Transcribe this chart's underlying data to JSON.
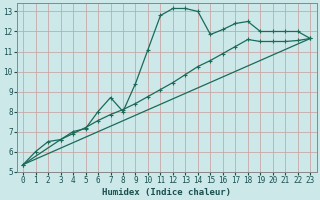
{
  "xlabel": "Humidex (Indice chaleur)",
  "ylabel": "",
  "background_color": "#cce8e8",
  "grid_color": "#b8d8d8",
  "line_color": "#1a6b5a",
  "xlim": [
    -0.5,
    23.5
  ],
  "ylim": [
    5,
    13.4
  ],
  "xticks": [
    0,
    1,
    2,
    3,
    4,
    5,
    6,
    7,
    8,
    9,
    10,
    11,
    12,
    13,
    14,
    15,
    16,
    17,
    18,
    19,
    20,
    21,
    22,
    23
  ],
  "yticks": [
    5,
    6,
    7,
    8,
    9,
    10,
    11,
    12,
    13
  ],
  "line1_x": [
    0,
    1,
    2,
    3,
    4,
    5,
    6,
    7,
    8,
    9,
    10,
    11,
    12,
    13,
    14,
    15,
    16,
    17,
    18,
    19,
    20,
    21,
    22,
    23
  ],
  "line1_y": [
    5.35,
    6.0,
    6.5,
    6.6,
    7.0,
    7.15,
    8.0,
    8.7,
    8.0,
    9.4,
    11.1,
    12.8,
    13.15,
    13.15,
    13.0,
    11.85,
    12.1,
    12.4,
    12.5,
    12.0,
    12.0,
    12.0,
    12.0,
    11.65
  ],
  "line2_x": [
    0,
    3,
    4,
    5,
    6,
    7,
    8,
    9,
    10,
    11,
    12,
    13,
    14,
    15,
    16,
    17,
    18,
    19,
    20,
    21,
    22,
    23
  ],
  "line2_y": [
    5.35,
    6.6,
    6.9,
    7.2,
    7.55,
    7.85,
    8.1,
    8.4,
    8.75,
    9.1,
    9.45,
    9.85,
    10.25,
    10.55,
    10.9,
    11.25,
    11.6,
    11.5,
    11.5,
    11.5,
    11.55,
    11.65
  ],
  "line3_x": [
    0,
    23
  ],
  "line3_y": [
    5.35,
    11.65
  ]
}
